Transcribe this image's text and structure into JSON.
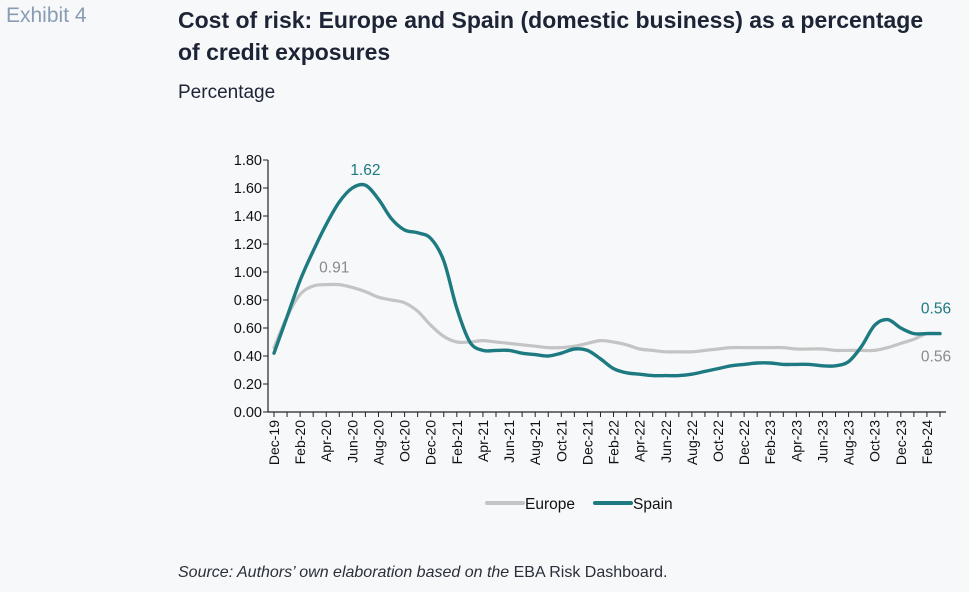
{
  "header": {
    "exhibit": "Exhibit 4",
    "title": "Cost of risk: Europe and Spain (domestic business) as a percentage of credit exposures",
    "subtitle": "Percentage"
  },
  "source": {
    "italic": "Source: Authors’ own elaboration based on the",
    "regular": " EBA Risk Dashboard."
  },
  "colors": {
    "europe": "#c4c4c4",
    "spain": "#1d7a80"
  },
  "chart_data": {
    "type": "line",
    "title": "Cost of risk: Europe and Spain (domestic business) as a percentage of credit exposures",
    "ylabel": "Percentage",
    "ylim": [
      0,
      1.8
    ],
    "yticks": [
      "0.00",
      "0.20",
      "0.40",
      "0.60",
      "0.80",
      "1.00",
      "1.20",
      "1.40",
      "1.60",
      "1.80"
    ],
    "xticks": [
      "Dec-19",
      "Feb-20",
      "Apr-20",
      "Jun-20",
      "Aug-20",
      "Oct-20",
      "Dec-20",
      "Feb-21",
      "Apr-21",
      "Jun-21",
      "Aug-21",
      "Oct-21",
      "Dec-21",
      "Feb-22",
      "Apr-22",
      "Jun-22",
      "Aug-22",
      "Oct-22",
      "Dec-22",
      "Feb-23",
      "Apr-23",
      "Jun-23",
      "Aug-23",
      "Oct-23",
      "Dec-23",
      "Feb-24"
    ],
    "x": [
      "Dec-19",
      "Jan-20",
      "Feb-20",
      "Mar-20",
      "Apr-20",
      "May-20",
      "Jun-20",
      "Jul-20",
      "Aug-20",
      "Sep-20",
      "Oct-20",
      "Nov-20",
      "Dec-20",
      "Jan-21",
      "Feb-21",
      "Mar-21",
      "Apr-21",
      "May-21",
      "Jun-21",
      "Jul-21",
      "Aug-21",
      "Sep-21",
      "Oct-21",
      "Nov-21",
      "Dec-21",
      "Jan-22",
      "Feb-22",
      "Mar-22",
      "Apr-22",
      "May-22",
      "Jun-22",
      "Jul-22",
      "Aug-22",
      "Sep-22",
      "Oct-22",
      "Nov-22",
      "Dec-22",
      "Jan-23",
      "Feb-23",
      "Mar-23",
      "Apr-23",
      "May-23",
      "Jun-23",
      "Jul-23",
      "Aug-23",
      "Sep-23",
      "Oct-23",
      "Nov-23",
      "Dec-23",
      "Jan-24",
      "Feb-24",
      "Mar-24"
    ],
    "series": [
      {
        "name": "Europe",
        "values": [
          0.46,
          0.68,
          0.84,
          0.9,
          0.91,
          0.91,
          0.89,
          0.86,
          0.82,
          0.8,
          0.78,
          0.72,
          0.62,
          0.54,
          0.5,
          0.5,
          0.51,
          0.5,
          0.49,
          0.48,
          0.47,
          0.46,
          0.46,
          0.47,
          0.49,
          0.51,
          0.5,
          0.48,
          0.45,
          0.44,
          0.43,
          0.43,
          0.43,
          0.44,
          0.45,
          0.46,
          0.46,
          0.46,
          0.46,
          0.46,
          0.45,
          0.45,
          0.45,
          0.44,
          0.44,
          0.44,
          0.44,
          0.46,
          0.49,
          0.52,
          0.56,
          0.56
        ]
      },
      {
        "name": "Spain",
        "values": [
          0.42,
          0.68,
          0.94,
          1.15,
          1.34,
          1.5,
          1.6,
          1.62,
          1.52,
          1.38,
          1.3,
          1.28,
          1.24,
          1.08,
          0.74,
          0.5,
          0.44,
          0.44,
          0.44,
          0.42,
          0.41,
          0.4,
          0.42,
          0.45,
          0.44,
          0.38,
          0.31,
          0.28,
          0.27,
          0.26,
          0.26,
          0.26,
          0.27,
          0.29,
          0.31,
          0.33,
          0.34,
          0.35,
          0.35,
          0.34,
          0.34,
          0.34,
          0.33,
          0.33,
          0.36,
          0.47,
          0.62,
          0.66,
          0.6,
          0.56,
          0.56,
          0.56
        ]
      }
    ],
    "annotations": [
      {
        "series": "Spain",
        "x": "Jul-20",
        "label": "1.62"
      },
      {
        "series": "Europe",
        "x": "Apr-20",
        "label": "0.91"
      },
      {
        "series": "Spain",
        "x": "Mar-24",
        "label": "0.56"
      },
      {
        "series": "Europe",
        "x": "Mar-24",
        "label": "0.56"
      }
    ],
    "legend": {
      "position": "bottom",
      "items": [
        "Europe",
        "Spain"
      ]
    },
    "grid": false
  }
}
